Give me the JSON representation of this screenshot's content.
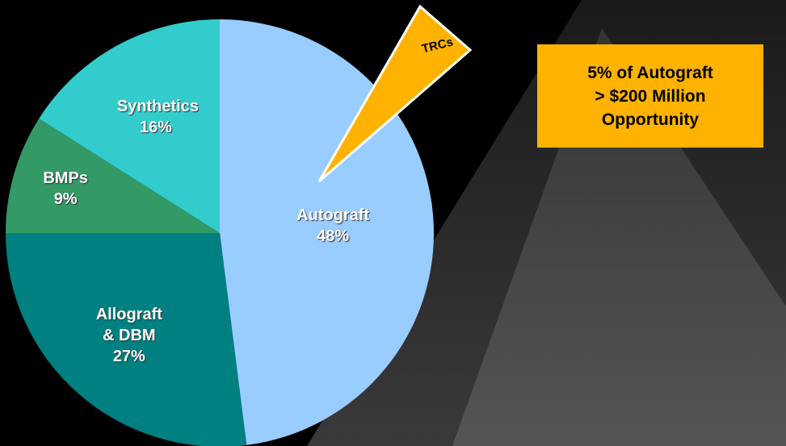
{
  "chart_data": {
    "type": "pie",
    "categories": [
      "Autograft",
      "Allograft & DBM",
      "BMPs",
      "Synthetics"
    ],
    "values": [
      48,
      27,
      9,
      16
    ],
    "value_labels": [
      "48%",
      "27%",
      "9%",
      "16%"
    ],
    "colors": [
      "#99ccff",
      "#008080",
      "#339966",
      "#33cccc"
    ],
    "callout": "TRCs",
    "annotation": [
      "5% of Autograft",
      "> $200 Million",
      "Opportunity"
    ]
  }
}
